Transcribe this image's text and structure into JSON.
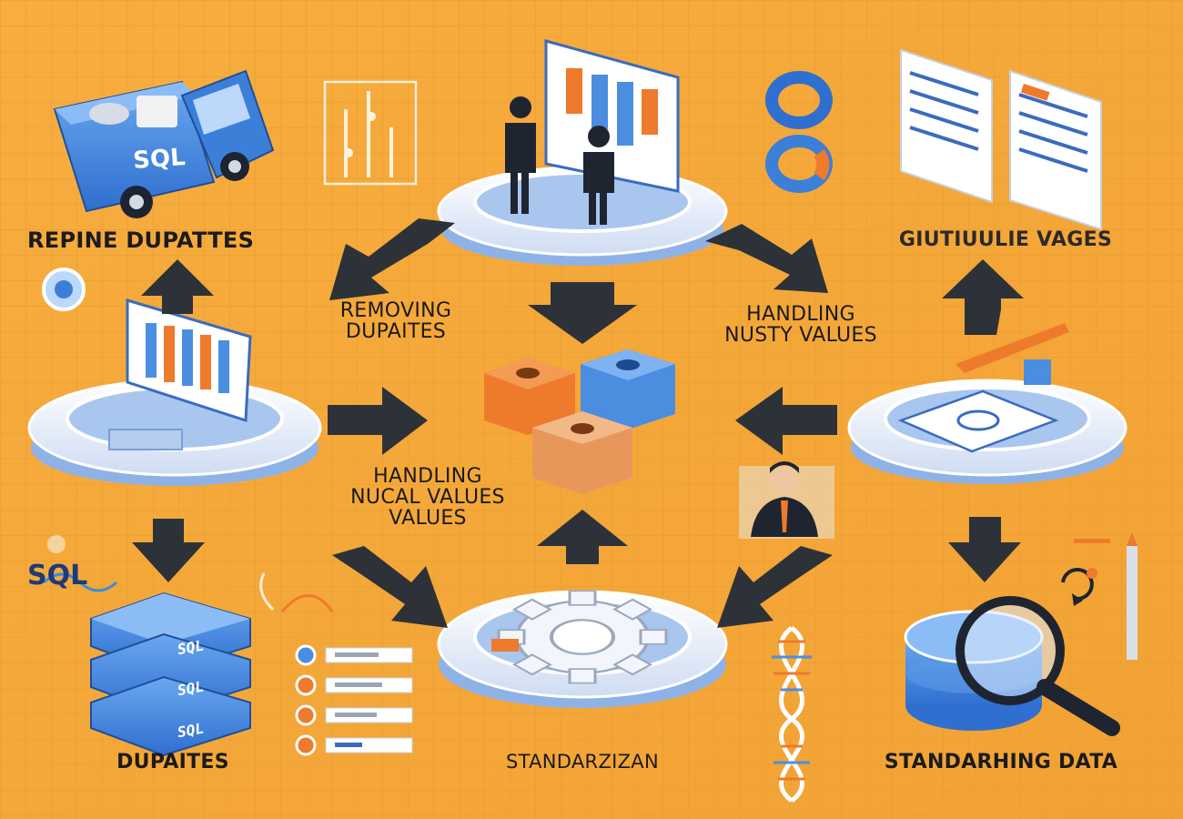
{
  "labels": {
    "repine_dupattes": "REPINE DUPATTES",
    "top_right": "GIUTIUULIE VAGES",
    "removing": [
      "REMOVING",
      "DUPAITES"
    ],
    "handling_nusty": [
      "HANDLING",
      "NUSTY VALUES"
    ],
    "handling_nucal": [
      "HANDLING",
      "NUCAL VALUES",
      "VALUES"
    ],
    "dupaites": "DUPAITES",
    "standarzizan": "STANDARZIZAN",
    "standarhing": "STANDARHING DATA"
  },
  "tags": {
    "truck_sql": "SQL",
    "side_sql": "SQL",
    "db_layers": [
      "SQL",
      "SQL",
      "SQL"
    ]
  },
  "colors": {
    "background": "#f5a93a",
    "grid": "#e79a2c",
    "accent_blue": "#4b8ee0",
    "accent_orange": "#ee7a2c",
    "arrow": "#2d3238",
    "platform": "#eaf1fb"
  },
  "icons": [
    "truck-icon",
    "chart-icon",
    "people-icon",
    "rings-icon",
    "documents-icon",
    "platform-chart-icon",
    "cubes-icon",
    "report-icon",
    "person-icon",
    "database-stack-icon",
    "list-icon",
    "gear-icon",
    "dna-icon",
    "magnifier-icon",
    "pencil-icon",
    "refresh-icon"
  ]
}
